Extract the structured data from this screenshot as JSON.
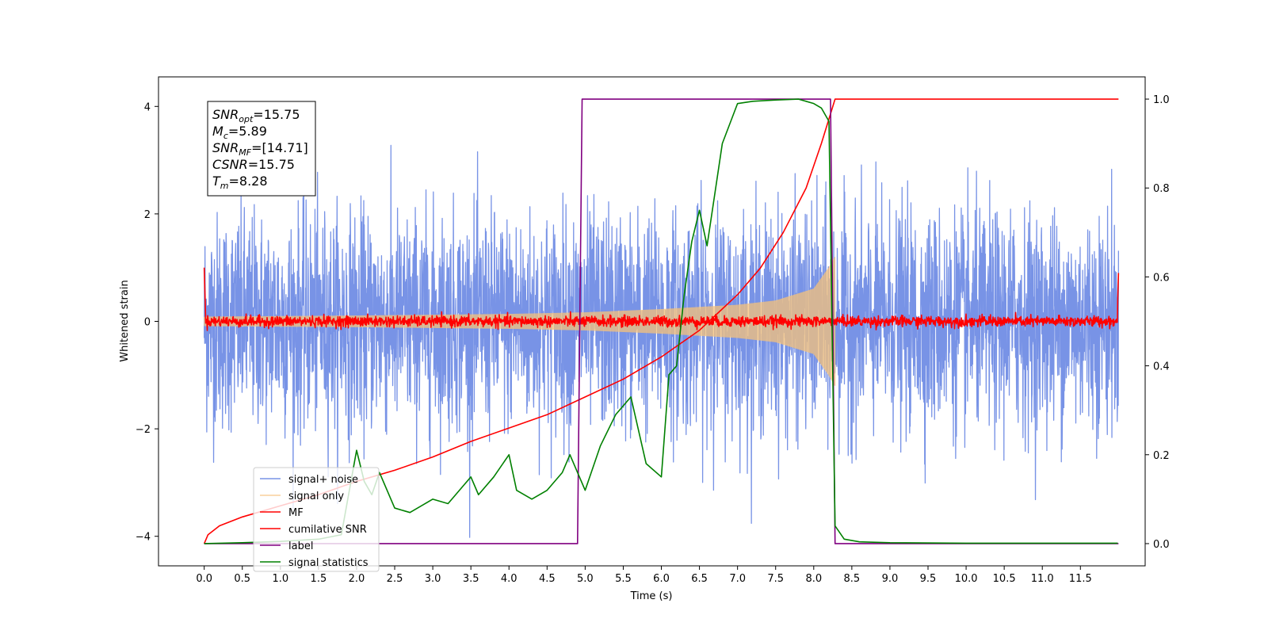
{
  "chart_data": {
    "type": "line",
    "xlabel": "Time (s)",
    "ylabel": "Whitened strain",
    "xlim": [
      -0.6,
      12.35
    ],
    "ylim": [
      -4.55,
      4.55
    ],
    "y2lim": [
      -0.05,
      1.05
    ],
    "x_ticks": [
      "0.0",
      "0.5",
      "1.0",
      "1.5",
      "2.0",
      "2.5",
      "3.0",
      "3.5",
      "4.0",
      "4.5",
      "5.0",
      "5.5",
      "6.0",
      "6.5",
      "7.0",
      "7.5",
      "8.0",
      "8.5",
      "9.0",
      "9.5",
      "10.0",
      "10.5",
      "11.0",
      "11.5"
    ],
    "y_ticks": [
      "−4",
      "−2",
      "0",
      "2",
      "4"
    ],
    "y2_ticks": [
      "0.0",
      "0.2",
      "0.4",
      "0.6",
      "0.8",
      "1.0"
    ],
    "grid": false,
    "legend_position": "lower-left",
    "annotation": {
      "lines": [
        {
          "main": "SNR",
          "sub": "opt",
          "value": "=15.75"
        },
        {
          "main": "M",
          "sub": "c",
          "value": "=5.89"
        },
        {
          "main": "SNR",
          "sub": "MF",
          "value": "=[14.71]"
        },
        {
          "main": "CSNR",
          "sub": "",
          "value": "=15.75"
        },
        {
          "main": "T",
          "sub": "m",
          "value": "=8.28"
        }
      ]
    },
    "series": [
      {
        "name": "signal+ noise",
        "color": "#7893e6",
        "axis": "left",
        "kind": "noise",
        "std": 1.0,
        "x_range": [
          0.0,
          12.0
        ]
      },
      {
        "name": "signal only",
        "color": "#f6c27a",
        "axis": "left",
        "kind": "chirp",
        "x_range": [
          0.0,
          8.28
        ],
        "amplitude_envelope": {
          "x": [
            0.0,
            2.0,
            4.0,
            5.0,
            6.0,
            7.0,
            7.5,
            8.0,
            8.2,
            8.28
          ],
          "y": [
            0.08,
            0.1,
            0.13,
            0.16,
            0.22,
            0.3,
            0.38,
            0.6,
            1.0,
            1.2
          ]
        }
      },
      {
        "name": "MF",
        "color": "#ff0000",
        "axis": "left",
        "kind": "noise",
        "std": 0.05,
        "x_range": [
          0.0,
          12.0
        ]
      },
      {
        "name": "cumilative SNR",
        "color": "#ff0000",
        "axis": "right",
        "x": [
          0.0,
          0.05,
          0.2,
          0.5,
          1.0,
          1.5,
          2.0,
          2.5,
          3.0,
          3.5,
          4.0,
          4.5,
          5.0,
          5.5,
          6.0,
          6.5,
          7.0,
          7.3,
          7.6,
          7.9,
          8.1,
          8.28,
          9.0,
          10.0,
          11.0,
          12.0
        ],
        "y": [
          0.0,
          0.02,
          0.04,
          0.06,
          0.085,
          0.11,
          0.14,
          0.165,
          0.195,
          0.23,
          0.26,
          0.29,
          0.33,
          0.37,
          0.42,
          0.48,
          0.56,
          0.62,
          0.7,
          0.8,
          0.9,
          1.0,
          1.0,
          1.0,
          1.0,
          1.0
        ]
      },
      {
        "name": "label",
        "color": "#800080",
        "axis": "right",
        "x": [
          0.0,
          4.9,
          4.96,
          8.22,
          8.28,
          12.0
        ],
        "y": [
          0.0,
          0.0,
          1.0,
          1.0,
          0.0,
          0.0
        ]
      },
      {
        "name": "signal statistics",
        "color": "#008000",
        "axis": "right",
        "x": [
          0.0,
          0.5,
          1.0,
          1.5,
          1.8,
          2.0,
          2.1,
          2.2,
          2.3,
          2.5,
          2.7,
          2.9,
          3.0,
          3.2,
          3.4,
          3.5,
          3.6,
          3.8,
          4.0,
          4.1,
          4.3,
          4.5,
          4.7,
          4.8,
          5.0,
          5.2,
          5.4,
          5.6,
          5.8,
          6.0,
          6.1,
          6.2,
          6.3,
          6.4,
          6.5,
          6.6,
          6.8,
          7.0,
          7.2,
          7.5,
          7.8,
          8.0,
          8.1,
          8.2,
          8.28,
          8.4,
          8.6,
          9.0,
          10.0,
          11.0,
          11.99
        ],
        "y": [
          0.0,
          0.002,
          0.005,
          0.01,
          0.02,
          0.21,
          0.14,
          0.11,
          0.16,
          0.08,
          0.07,
          0.09,
          0.1,
          0.09,
          0.13,
          0.15,
          0.11,
          0.15,
          0.2,
          0.12,
          0.1,
          0.12,
          0.16,
          0.2,
          0.12,
          0.22,
          0.29,
          0.33,
          0.18,
          0.15,
          0.38,
          0.4,
          0.56,
          0.68,
          0.75,
          0.67,
          0.9,
          0.99,
          0.995,
          0.998,
          1.0,
          0.99,
          0.98,
          0.95,
          0.04,
          0.01,
          0.004,
          0.002,
          0.001,
          0.001,
          0.001
        ]
      }
    ]
  }
}
